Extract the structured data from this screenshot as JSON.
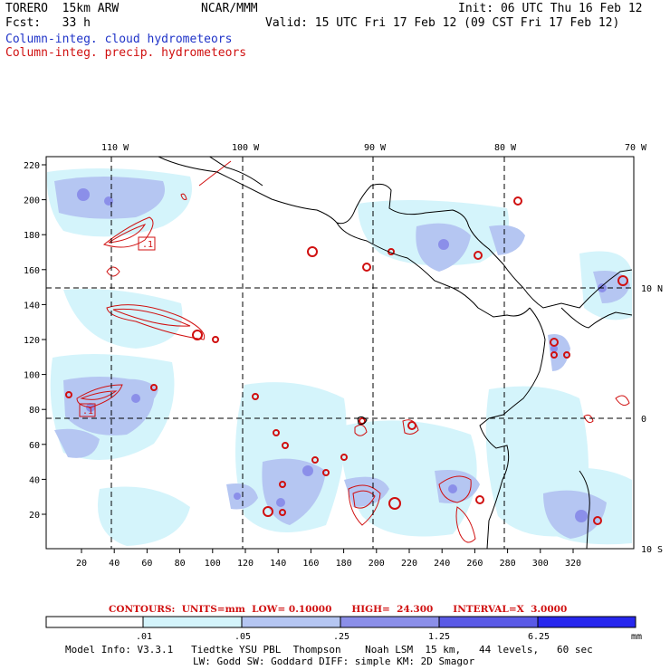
{
  "header": {
    "model": "TORERO  15km ARW",
    "org": "NCAR/MMM",
    "init": "Init: 06 UTC Thu 16 Feb 12",
    "fcst": "Fcst:   33 h",
    "valid": "Valid: 15 UTC Fri 17 Feb 12 (09 CST Fri 17 Feb 12)",
    "field_blue": "Column-integ. cloud hydrometeors",
    "field_red": "Column-integ. precip. hydrometeors"
  },
  "axes": {
    "top_lon_labels": [
      "110 W",
      "100 W",
      "90 W",
      "80 W",
      "70 W"
    ],
    "right_lat_labels": [
      "10 N",
      "0",
      "10 S"
    ],
    "y_ticks": [
      "220",
      "200",
      "180",
      "160",
      "140",
      "120",
      "100",
      "80",
      "60",
      "40",
      "20"
    ],
    "x_ticks": [
      "20",
      "40",
      "60",
      "80",
      "100",
      "120",
      "140",
      "160",
      "180",
      "200",
      "220",
      "240",
      "260",
      "280",
      "300",
      "320"
    ]
  },
  "contours_line": {
    "label": "CONTOURS:",
    "units": "UNITS=mm",
    "low": "LOW= 0.10000",
    "high": "HIGH=  24.300",
    "interval": "INTERVAL=X  3.0000"
  },
  "colorbar": {
    "labels": [
      ".01",
      ".05",
      ".25",
      "1.25",
      "6.25"
    ],
    "unit": "mm",
    "colors": [
      "#ffffff",
      "#d4f4fb",
      "#b5c6f2",
      "#9499ec",
      "#6f6fe6",
      "#4545e8",
      "#2020ee"
    ]
  },
  "contour_labels": [
    ".1",
    ".1"
  ],
  "model_info": {
    "line1": "Model Info: V3.3.1   Tiedtke YSU PBL  Thompson    Noah LSM  15 km,   44 levels,   60 sec",
    "line2": "LW: Godd SW: Goddard DIFF: simple KM: 2D Smagor"
  }
}
